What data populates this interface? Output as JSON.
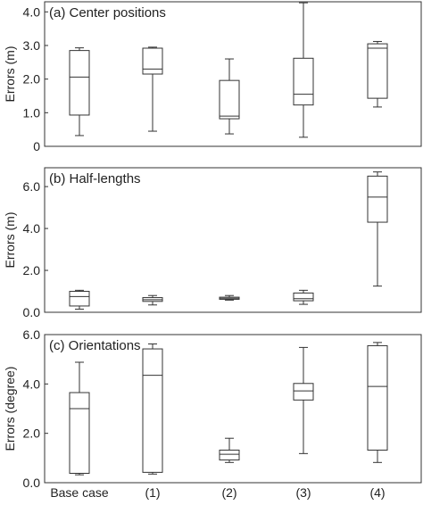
{
  "chart_data": [
    {
      "type": "box",
      "title": "(a)  Center positions",
      "ylabel": "Errors (m)",
      "ylim": [
        0,
        4.3
      ],
      "yticks": [
        0,
        1.0,
        2.0,
        3.0,
        4.0
      ],
      "ytick_labels": [
        "0",
        "1.0",
        "2.0",
        "3.0",
        "4.0"
      ],
      "boxes": [
        {
          "min": 0.32,
          "q1": 0.93,
          "median": 2.06,
          "q3": 2.85,
          "max": 2.93
        },
        {
          "min": 0.45,
          "q1": 2.15,
          "median": 2.3,
          "q3": 2.92,
          "max": 2.95
        },
        {
          "min": 0.37,
          "q1": 0.82,
          "median": 0.9,
          "q3": 1.96,
          "max": 2.6
        },
        {
          "min": 0.27,
          "q1": 1.23,
          "median": 1.55,
          "q3": 2.62,
          "max": 4.27
        },
        {
          "min": 1.17,
          "q1": 1.43,
          "median": 2.92,
          "q3": 3.05,
          "max": 3.12
        }
      ]
    },
    {
      "type": "box",
      "title": "(b) Half-lengths",
      "ylabel": "Errors (m)",
      "ylim": [
        0,
        6.9
      ],
      "yticks": [
        0,
        2.0,
        4.0,
        6.0
      ],
      "ytick_labels": [
        "0.0",
        "2.0",
        "4.0",
        "6.0"
      ],
      "boxes": [
        {
          "min": 0.15,
          "q1": 0.3,
          "median": 0.75,
          "q3": 1.0,
          "max": 1.05
        },
        {
          "min": 0.35,
          "q1": 0.52,
          "median": 0.6,
          "q3": 0.7,
          "max": 0.8
        },
        {
          "min": 0.58,
          "q1": 0.62,
          "median": 0.67,
          "q3": 0.72,
          "max": 0.8
        },
        {
          "min": 0.38,
          "q1": 0.55,
          "median": 0.65,
          "q3": 0.92,
          "max": 1.05
        },
        {
          "min": 1.25,
          "q1": 4.3,
          "median": 5.5,
          "q3": 6.5,
          "max": 6.7
        }
      ]
    },
    {
      "type": "box",
      "title": "(c) Orientations",
      "ylabel": "Errors (degree)",
      "ylim": [
        0,
        6.0
      ],
      "yticks": [
        0,
        2.0,
        4.0,
        6.0
      ],
      "ytick_labels": [
        "0.0",
        "2.0",
        "4.0",
        "6.0"
      ],
      "categories": [
        "Base case",
        "(1)",
        "(2)",
        "(3)",
        "(4)"
      ],
      "boxes": [
        {
          "min": 0.32,
          "q1": 0.38,
          "median": 3.0,
          "q3": 3.65,
          "max": 4.88
        },
        {
          "min": 0.35,
          "q1": 0.42,
          "median": 4.35,
          "q3": 5.42,
          "max": 5.62
        },
        {
          "min": 0.82,
          "q1": 0.92,
          "median": 1.15,
          "q3": 1.32,
          "max": 1.8
        },
        {
          "min": 1.18,
          "q1": 3.35,
          "median": 3.72,
          "q3": 4.02,
          "max": 5.48
        },
        {
          "min": 0.82,
          "q1": 1.32,
          "median": 3.9,
          "q3": 5.55,
          "max": 5.68
        }
      ]
    }
  ]
}
